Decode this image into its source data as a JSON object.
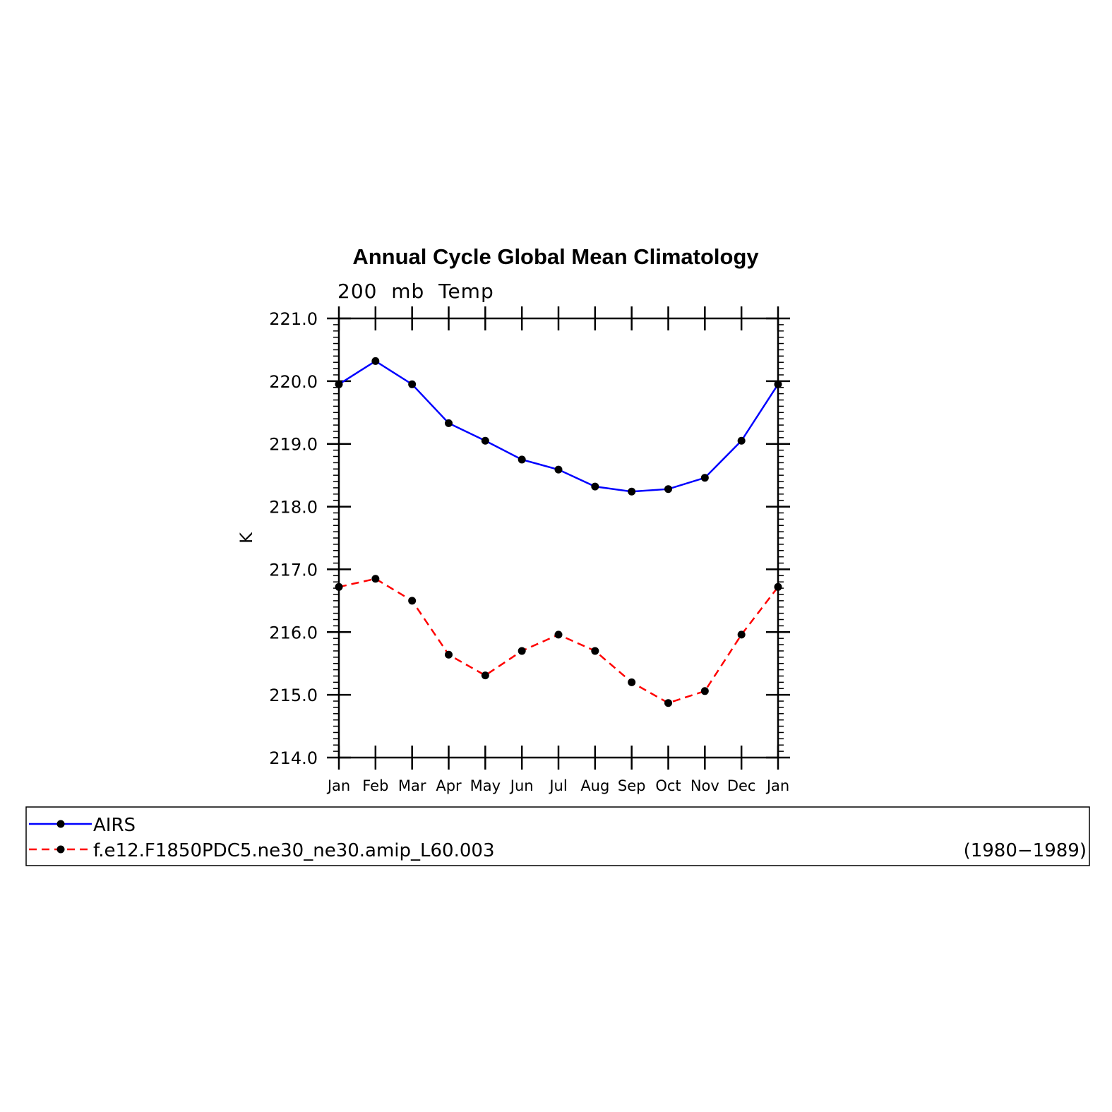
{
  "chart_data": {
    "type": "line",
    "title": "Annual Cycle Global Mean Climatology",
    "subtitle": "200  mb  Temp",
    "ylabel": "K",
    "ylim": [
      214.0,
      221.0
    ],
    "yticks": [
      "214.0",
      "215.0",
      "216.0",
      "217.0",
      "218.0",
      "219.0",
      "220.0",
      "221.0"
    ],
    "categories": [
      "Jan",
      "Feb",
      "Mar",
      "Apr",
      "May",
      "Jun",
      "Jul",
      "Aug",
      "Sep",
      "Oct",
      "Nov",
      "Dec",
      "Jan"
    ],
    "series": [
      {
        "name": "AIRS",
        "color": "#0000ff",
        "dash": "solid",
        "values": [
          219.95,
          220.32,
          219.95,
          219.33,
          219.05,
          218.75,
          218.59,
          218.32,
          218.24,
          218.28,
          218.46,
          219.05,
          219.95
        ]
      },
      {
        "name": "f.e12.F1850PDC5.ne30_ne30.amip_L60.003",
        "color": "#ff0000",
        "dash": "dashed",
        "values": [
          216.72,
          216.85,
          216.5,
          215.64,
          215.31,
          215.7,
          215.96,
          215.7,
          215.2,
          214.87,
          215.06,
          215.96,
          216.72
        ]
      }
    ],
    "legend_note": "(1980−1989)",
    "legend_placement": "bottom",
    "grid": false
  }
}
